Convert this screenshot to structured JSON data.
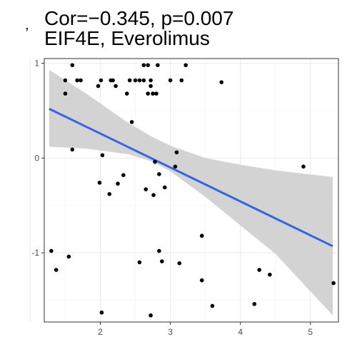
{
  "chart_data": {
    "type": "scatter",
    "title": "Cor=−0.345, p=0.007",
    "subtitle": "EIF4E, Everolimus",
    "xlabel": "",
    "ylabel": "",
    "xlim": [
      1.2,
      5.4
    ],
    "ylim": [
      -1.73,
      1.05
    ],
    "x_ticks": [
      2,
      3,
      4,
      5
    ],
    "y_ticks": [
      -1,
      0,
      1
    ],
    "x_tick_labels": [
      "2",
      "3",
      "4",
      "5"
    ],
    "y_tick_labels": [
      "-1",
      "0",
      "1"
    ],
    "grid": true,
    "marker_color": "#000000",
    "fit_line_color": "#3366e0",
    "confidence_band_color": "#d3d3d3",
    "fit_line": {
      "x": [
        1.27,
        5.32
      ],
      "y": [
        0.52,
        -0.93
      ]
    },
    "confidence_band": {
      "x": [
        1.27,
        1.8,
        2.4,
        2.75,
        3.0,
        3.5,
        4.0,
        4.5,
        5.32
      ],
      "upper": [
        0.93,
        0.68,
        0.37,
        0.22,
        0.13,
        0.0,
        -0.07,
        -0.13,
        -0.2
      ],
      "lower": [
        0.12,
        0.1,
        0.04,
        -0.04,
        -0.14,
        -0.41,
        -0.71,
        -1.01,
        -1.66
      ]
    },
    "points": [
      [
        1.3,
        -0.98
      ],
      [
        1.37,
        -1.18
      ],
      [
        1.5,
        0.82
      ],
      [
        1.5,
        0.68
      ],
      [
        1.55,
        -1.04
      ],
      [
        1.6,
        0.98
      ],
      [
        1.6,
        0.09
      ],
      [
        1.67,
        0.82
      ],
      [
        1.72,
        0.82
      ],
      [
        1.97,
        0.76
      ],
      [
        1.99,
        -0.26
      ],
      [
        2.01,
        0.82
      ],
      [
        2.03,
        0.03
      ],
      [
        2.02,
        -1.63
      ],
      [
        2.13,
        -0.38
      ],
      [
        2.15,
        0.82
      ],
      [
        2.18,
        0.82
      ],
      [
        2.22,
        0.76
      ],
      [
        2.25,
        -0.27
      ],
      [
        2.33,
        -0.18
      ],
      [
        2.38,
        0.68
      ],
      [
        2.42,
        0.82
      ],
      [
        2.45,
        0.38
      ],
      [
        2.5,
        0.82
      ],
      [
        2.56,
        0.82
      ],
      [
        2.56,
        -1.1
      ],
      [
        2.62,
        0.98
      ],
      [
        2.62,
        0.82
      ],
      [
        2.65,
        -0.33
      ],
      [
        2.68,
        0.68
      ],
      [
        2.68,
        0.98
      ],
      [
        2.72,
        -1.66
      ],
      [
        2.72,
        0.82
      ],
      [
        2.72,
        0.76
      ],
      [
        2.75,
        0.68
      ],
      [
        2.76,
        -0.39
      ],
      [
        2.78,
        -0.04
      ],
      [
        2.8,
        0.68
      ],
      [
        2.82,
        0.98
      ],
      [
        2.84,
        -0.98
      ],
      [
        2.84,
        -0.17
      ],
      [
        2.88,
        -1.09
      ],
      [
        2.92,
        -0.31
      ],
      [
        3.0,
        0.82
      ],
      [
        3.07,
        -0.09
      ],
      [
        3.09,
        0.06
      ],
      [
        3.13,
        -1.11
      ],
      [
        3.16,
        0.82
      ],
      [
        3.22,
        0.98
      ],
      [
        3.45,
        -0.82
      ],
      [
        3.45,
        -1.29
      ],
      [
        3.6,
        -1.56
      ],
      [
        3.73,
        0.8
      ],
      [
        4.2,
        -1.54
      ],
      [
        4.27,
        -1.18
      ],
      [
        4.42,
        -1.23
      ],
      [
        4.9,
        -0.09
      ],
      [
        5.33,
        -1.32
      ]
    ]
  }
}
